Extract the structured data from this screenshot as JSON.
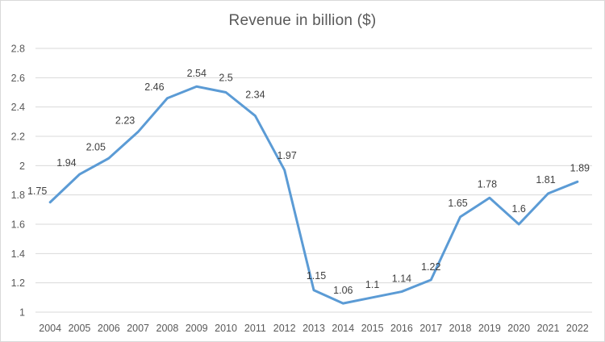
{
  "chart_data": {
    "type": "line",
    "title": "Revenue in billion ($)",
    "xlabel": "",
    "ylabel": "",
    "ylim": [
      1,
      2.8
    ],
    "yticks": [
      "1",
      "1.2",
      "1.4",
      "1.6",
      "1.8",
      "2",
      "2.2",
      "2.4",
      "2.6",
      "2.8"
    ],
    "categories": [
      "2004",
      "2005",
      "2006",
      "2007",
      "2008",
      "2009",
      "2010",
      "2011",
      "2012",
      "2013",
      "2014",
      "2015",
      "2016",
      "2017",
      "2018",
      "2019",
      "2020",
      "2021",
      "2022"
    ],
    "series": [
      {
        "name": "Revenue in billion ($)",
        "values": [
          1.75,
          1.94,
          2.05,
          2.23,
          2.46,
          2.54,
          2.5,
          2.34,
          1.97,
          1.15,
          1.06,
          1.1,
          1.14,
          1.22,
          1.65,
          1.78,
          1.6,
          1.81,
          1.89
        ],
        "labels": [
          "1.75",
          "1.94",
          "2.05",
          "2.23",
          "2.46",
          "2.54",
          "2.5",
          "2.34",
          "1.97",
          "1.15",
          "1.06",
          "1.1",
          "1.14",
          "1.22",
          "1.65",
          "1.78",
          "1.6",
          "1.81",
          "1.89"
        ],
        "color": "#5b9bd5"
      }
    ],
    "grid": true,
    "legend": "none"
  }
}
